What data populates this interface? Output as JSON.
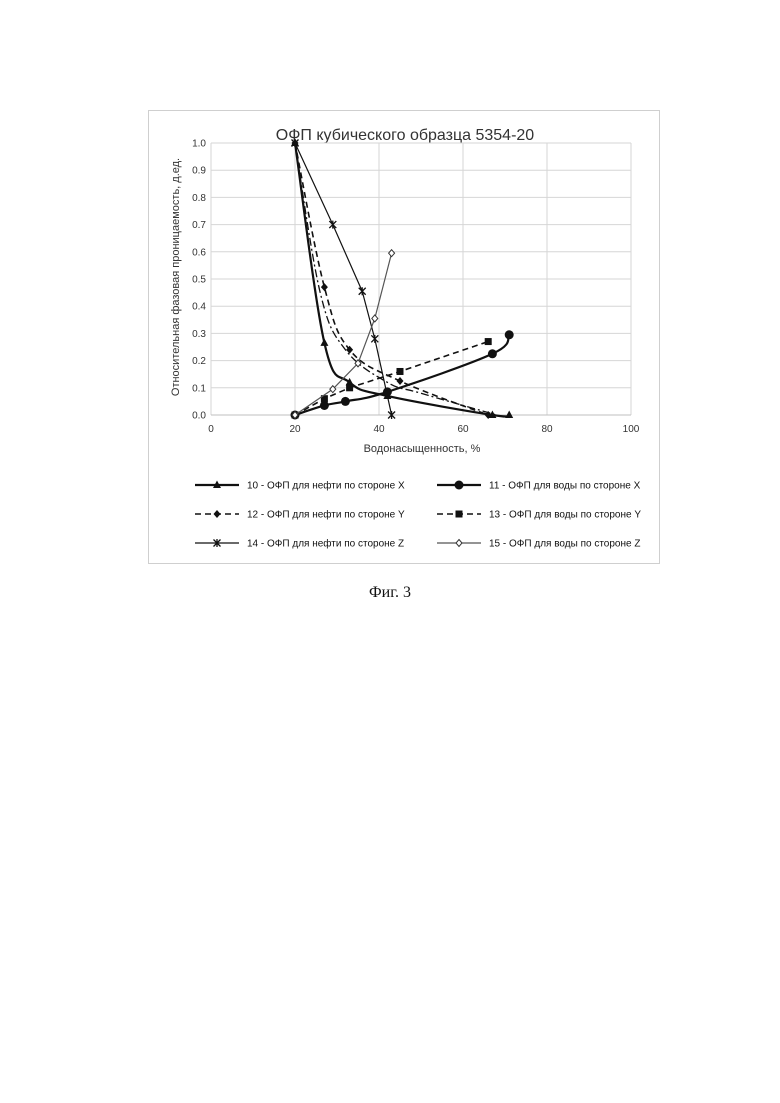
{
  "caption": "Фиг. 3",
  "chart_data": {
    "type": "line",
    "title": "ОФП кубического образца 5354-20",
    "xlabel": "Водонасыщенность, %",
    "ylabel": "Относительная фазовая проницаемость, д.ед.",
    "xlim": [
      0,
      100
    ],
    "ylim": [
      0,
      1
    ],
    "xticks": [
      0,
      20,
      40,
      60,
      80,
      100
    ],
    "yticks": [
      0.0,
      0.1,
      0.2,
      0.3,
      0.4,
      0.5,
      0.6,
      0.7,
      0.8,
      0.9,
      1.0
    ],
    "grid": true,
    "legend_position": "bottom",
    "series": [
      {
        "name": "10 - ОФП для нефти по стороне X",
        "marker": "triangle",
        "dash": "solid",
        "width": 2.2,
        "color": "#111111",
        "smooth": true,
        "x": [
          20,
          27,
          33,
          42,
          67,
          71
        ],
        "y": [
          1.0,
          0.265,
          0.12,
          0.07,
          0.0,
          0.0
        ]
      },
      {
        "name": "11 - ОФП для воды по стороне X",
        "marker": "circle",
        "dash": "solid",
        "width": 2.2,
        "color": "#111111",
        "smooth": true,
        "x": [
          20,
          27,
          32,
          42,
          67,
          71
        ],
        "y": [
          0.0,
          0.035,
          0.05,
          0.085,
          0.225,
          0.295
        ]
      },
      {
        "name": "12 - ОФП для нефти по стороне Y",
        "marker": "diamond",
        "dash": "dashed",
        "width": 1.6,
        "color": "#111111",
        "smooth": true,
        "x": [
          20,
          27,
          33,
          45,
          66
        ],
        "y": [
          1.0,
          0.47,
          0.24,
          0.125,
          0.0
        ]
      },
      {
        "name": "13 - ОФП для воды по стороне Y",
        "marker": "square",
        "dash": "dashed",
        "width": 1.6,
        "color": "#111111",
        "smooth": false,
        "x": [
          20,
          27,
          33,
          45,
          66
        ],
        "y": [
          0.0,
          0.06,
          0.1,
          0.16,
          0.27
        ]
      },
      {
        "name": "14 - ОФП для нефти по стороне Z",
        "marker": "star",
        "dash": "solid",
        "width": 1.2,
        "color": "#111111",
        "smooth": false,
        "x": [
          20,
          29,
          36,
          39,
          43
        ],
        "y": [
          1.0,
          0.7,
          0.455,
          0.28,
          0.0
        ]
      },
      {
        "name": "15 - ОФП для воды по стороне Z",
        "marker": "hollow-diamond",
        "dash": "solid",
        "width": 1.2,
        "color": "#555555",
        "smooth": false,
        "x": [
          20,
          29,
          35,
          39,
          43
        ],
        "y": [
          0.0,
          0.095,
          0.19,
          0.355,
          0.595
        ]
      }
    ],
    "extra_lines": [
      {
        "style": "dashdot",
        "x": [
          20,
          26,
          32,
          42,
          50,
          68
        ],
        "y": [
          1.0,
          0.45,
          0.24,
          0.12,
          0.08,
          0.0
        ]
      }
    ]
  }
}
